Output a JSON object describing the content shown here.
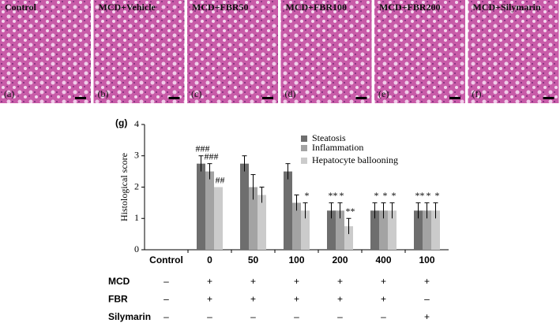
{
  "panels": [
    {
      "title": "Control",
      "letter": "(a)"
    },
    {
      "title": "MCD+Vehicle",
      "letter": "(b)"
    },
    {
      "title": "MCD+FBR50",
      "letter": "(c)"
    },
    {
      "title": "MCD+FBR100",
      "letter": "(d)"
    },
    {
      "title": "MCD+FBR200",
      "letter": "(e)"
    },
    {
      "title": "MCD+Silymarin",
      "letter": "(f)"
    }
  ],
  "chart_data": {
    "type": "bar",
    "panel_label": "(g)",
    "y_label": "Histological score",
    "categories": [
      "Control",
      "0",
      "50",
      "100",
      "200",
      "400",
      "100"
    ],
    "series": [
      {
        "name": "Steatosis",
        "color": "#6e6e6e",
        "values": [
          0,
          2.75,
          2.75,
          2.5,
          1.25,
          1.25,
          1.25
        ],
        "errors": [
          0,
          0.25,
          0.25,
          0.25,
          0.25,
          0.25,
          0.25
        ],
        "annotations": [
          null,
          "###",
          null,
          null,
          "**",
          "*",
          "**"
        ]
      },
      {
        "name": "Inflammation",
        "color": "#a3a3a3",
        "values": [
          0,
          2.5,
          2.0,
          1.5,
          1.25,
          1.25,
          1.25
        ],
        "errors": [
          0,
          0.25,
          0.4,
          0.25,
          0.25,
          0.25,
          0.25
        ],
        "annotations": [
          null,
          "###",
          null,
          null,
          "*",
          "*",
          "*"
        ]
      },
      {
        "name": "Hepatocyte ballooning",
        "color": "#cbcbcb",
        "values": [
          0,
          2.0,
          1.75,
          1.25,
          0.75,
          1.25,
          1.25
        ],
        "errors": [
          0,
          0,
          0.25,
          0.25,
          0.25,
          0.25,
          0.25
        ],
        "annotations": [
          null,
          "##",
          null,
          "*",
          "**",
          "*",
          "*"
        ]
      }
    ],
    "ylim": [
      0,
      4
    ],
    "yticks": [
      0,
      1,
      2,
      3,
      4
    ]
  },
  "table": {
    "rows": [
      {
        "label": "MCD",
        "cells": [
          "–",
          "+",
          "+",
          "+",
          "+",
          "+",
          "+"
        ]
      },
      {
        "label": "FBR",
        "cells": [
          "–",
          "+",
          "+",
          "+",
          "+",
          "+",
          "–"
        ]
      },
      {
        "label": "Silymarin",
        "cells": [
          "–",
          "–",
          "–",
          "–",
          "–",
          "–",
          "+"
        ]
      }
    ]
  }
}
